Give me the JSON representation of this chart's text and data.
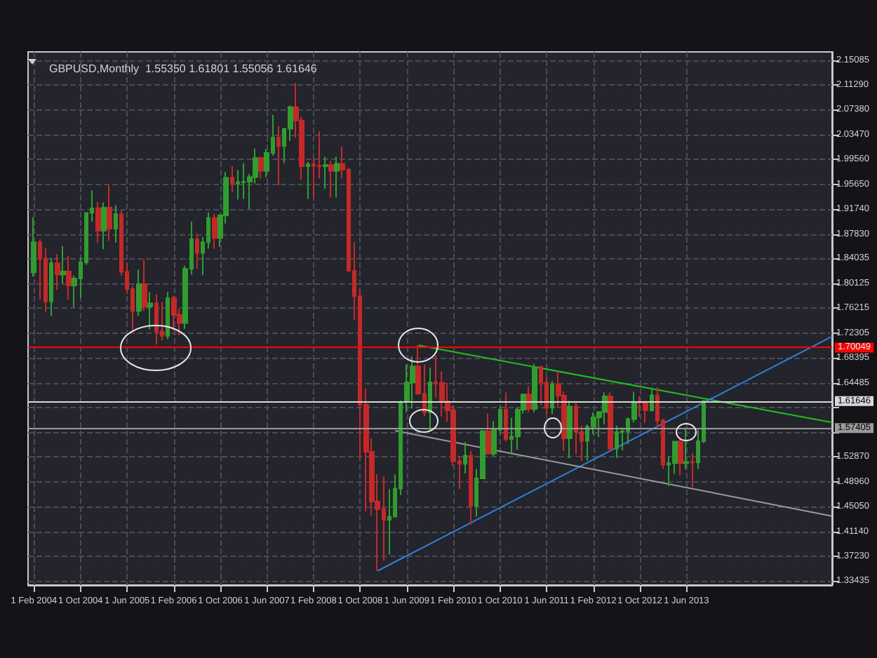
{
  "chart_data": {
    "type": "candlestick",
    "title": "GBPUSD,Monthly  1.55350 1.61801 1.55056 1.61646",
    "x": [
      "2004-02",
      "2004-03",
      "2004-04",
      "2004-05",
      "2004-06",
      "2004-07",
      "2004-08",
      "2004-09",
      "2004-10",
      "2004-11",
      "2004-12",
      "2005-01",
      "2005-02",
      "2005-03",
      "2005-04",
      "2005-05",
      "2005-06",
      "2005-07",
      "2005-08",
      "2005-09",
      "2005-10",
      "2005-11",
      "2005-12",
      "2006-01",
      "2006-02",
      "2006-03",
      "2006-04",
      "2006-05",
      "2006-06",
      "2006-07",
      "2006-08",
      "2006-09",
      "2006-10",
      "2006-11",
      "2006-12",
      "2007-01",
      "2007-02",
      "2007-03",
      "2007-04",
      "2007-05",
      "2007-06",
      "2007-07",
      "2007-08",
      "2007-09",
      "2007-10",
      "2007-11",
      "2007-12",
      "2008-01",
      "2008-02",
      "2008-03",
      "2008-04",
      "2008-05",
      "2008-06",
      "2008-07",
      "2008-08",
      "2008-09",
      "2008-10",
      "2008-11",
      "2008-12",
      "2009-01",
      "2009-02",
      "2009-03",
      "2009-04",
      "2009-05",
      "2009-06",
      "2009-07",
      "2009-08",
      "2009-09",
      "2009-10",
      "2009-11",
      "2009-12",
      "2010-01",
      "2010-02",
      "2010-03",
      "2010-04",
      "2010-05",
      "2010-06",
      "2010-07",
      "2010-08",
      "2010-09",
      "2010-10",
      "2010-11",
      "2010-12",
      "2011-01",
      "2011-02",
      "2011-03",
      "2011-04",
      "2011-05",
      "2011-06",
      "2011-07",
      "2011-08",
      "2011-09",
      "2011-10",
      "2011-11",
      "2011-12",
      "2012-01",
      "2012-02",
      "2012-03",
      "2012-04",
      "2012-05",
      "2012-06",
      "2012-07",
      "2012-08",
      "2012-09",
      "2012-10",
      "2012-11",
      "2012-12",
      "2013-01",
      "2013-02",
      "2013-03",
      "2013-04",
      "2013-05",
      "2013-06",
      "2013-07",
      "2013-08",
      "2013-09"
    ],
    "ohlc": [
      [
        1.8185,
        1.905,
        1.812,
        1.866
      ],
      [
        1.866,
        1.87,
        1.776,
        1.84
      ],
      [
        1.84,
        1.856,
        1.757,
        1.773
      ],
      [
        1.773,
        1.841,
        1.75,
        1.833
      ],
      [
        1.833,
        1.847,
        1.791,
        1.815
      ],
      [
        1.815,
        1.86,
        1.8,
        1.82
      ],
      [
        1.82,
        1.844,
        1.776,
        1.798
      ],
      [
        1.798,
        1.814,
        1.764,
        1.809
      ],
      [
        1.809,
        1.842,
        1.778,
        1.8345
      ],
      [
        1.8345,
        1.913,
        1.83,
        1.912
      ],
      [
        1.912,
        1.947,
        1.898,
        1.919
      ],
      [
        1.919,
        1.929,
        1.865,
        1.884
      ],
      [
        1.884,
        1.928,
        1.855,
        1.92
      ],
      [
        1.92,
        1.955,
        1.868,
        1.887
      ],
      [
        1.887,
        1.924,
        1.865,
        1.91
      ],
      [
        1.91,
        1.916,
        1.813,
        1.8195
      ],
      [
        1.8195,
        1.834,
        1.785,
        1.7925
      ],
      [
        1.7925,
        1.797,
        1.727,
        1.758
      ],
      [
        1.758,
        1.823,
        1.75,
        1.8
      ],
      [
        1.8,
        1.839,
        1.758,
        1.765
      ],
      [
        1.765,
        1.788,
        1.729,
        1.77
      ],
      [
        1.77,
        1.784,
        1.705,
        1.726
      ],
      [
        1.726,
        1.772,
        1.712,
        1.719
      ],
      [
        1.719,
        1.788,
        1.714,
        1.778
      ],
      [
        1.778,
        1.782,
        1.727,
        1.752
      ],
      [
        1.752,
        1.762,
        1.72,
        1.739
      ],
      [
        1.739,
        1.829,
        1.73,
        1.824
      ],
      [
        1.824,
        1.898,
        1.815,
        1.8705
      ],
      [
        1.8705,
        1.88,
        1.825,
        1.849
      ],
      [
        1.849,
        1.874,
        1.814,
        1.866
      ],
      [
        1.866,
        1.913,
        1.856,
        1.904
      ],
      [
        1.904,
        1.91,
        1.856,
        1.8725
      ],
      [
        1.8725,
        1.91,
        1.859,
        1.908
      ],
      [
        1.908,
        1.976,
        1.895,
        1.967
      ],
      [
        1.967,
        1.985,
        1.945,
        1.958
      ],
      [
        1.958,
        1.979,
        1.933,
        1.96
      ],
      [
        1.96,
        1.99,
        1.934,
        1.961
      ],
      [
        1.961,
        1.973,
        1.918,
        1.968
      ],
      [
        1.968,
        2.013,
        1.958,
        1.998
      ],
      [
        1.998,
        2.0,
        1.966,
        1.978
      ],
      [
        1.978,
        2.012,
        1.968,
        2.006
      ],
      [
        2.006,
        2.066,
        2.002,
        2.03
      ],
      [
        2.03,
        2.048,
        1.955,
        2.017
      ],
      [
        2.017,
        2.045,
        1.99,
        2.044
      ],
      [
        2.044,
        2.081,
        2.025,
        2.078
      ],
      [
        2.078,
        2.116,
        2.03,
        2.057
      ],
      [
        2.057,
        2.063,
        1.964,
        1.985
      ],
      [
        1.985,
        1.992,
        1.934,
        1.988
      ],
      [
        1.988,
        1.998,
        1.936,
        1.986
      ],
      [
        1.986,
        2.04,
        1.966,
        1.985
      ],
      [
        1.985,
        2.0,
        1.95,
        1.987
      ],
      [
        1.987,
        1.993,
        1.936,
        1.978
      ],
      [
        1.978,
        2.0,
        1.936,
        1.989
      ],
      [
        1.989,
        2.016,
        1.966,
        1.98
      ],
      [
        1.98,
        1.982,
        1.821,
        1.821
      ],
      [
        1.821,
        1.866,
        1.744,
        1.781
      ],
      [
        1.781,
        1.793,
        1.525,
        1.611
      ],
      [
        1.611,
        1.636,
        1.443,
        1.537
      ],
      [
        1.537,
        1.558,
        1.437,
        1.459
      ],
      [
        1.459,
        1.501,
        1.35,
        1.447
      ],
      [
        1.447,
        1.498,
        1.366,
        1.43
      ],
      [
        1.43,
        1.478,
        1.376,
        1.435
      ],
      [
        1.435,
        1.501,
        1.434,
        1.479
      ],
      [
        1.479,
        1.617,
        1.469,
        1.615
      ],
      [
        1.615,
        1.674,
        1.599,
        1.6455
      ],
      [
        1.6455,
        1.686,
        1.605,
        1.671
      ],
      [
        1.671,
        1.704,
        1.626,
        1.628
      ],
      [
        1.628,
        1.674,
        1.593,
        1.599
      ],
      [
        1.599,
        1.669,
        1.57,
        1.646
      ],
      [
        1.646,
        1.688,
        1.622,
        1.645
      ],
      [
        1.645,
        1.663,
        1.592,
        1.616
      ],
      [
        1.616,
        1.645,
        1.584,
        1.602
      ],
      [
        1.602,
        1.61,
        1.515,
        1.522
      ],
      [
        1.522,
        1.53,
        1.478,
        1.518
      ],
      [
        1.518,
        1.552,
        1.503,
        1.531
      ],
      [
        1.531,
        1.538,
        1.423,
        1.452
      ],
      [
        1.452,
        1.51,
        1.435,
        1.495
      ],
      [
        1.495,
        1.571,
        1.495,
        1.569
      ],
      [
        1.569,
        1.597,
        1.533,
        1.534
      ],
      [
        1.534,
        1.585,
        1.53,
        1.572
      ],
      [
        1.572,
        1.61,
        1.565,
        1.603
      ],
      [
        1.603,
        1.63,
        1.553,
        1.557
      ],
      [
        1.557,
        1.59,
        1.535,
        1.561
      ],
      [
        1.561,
        1.606,
        1.54,
        1.603
      ],
      [
        1.603,
        1.628,
        1.597,
        1.627
      ],
      [
        1.627,
        1.64,
        1.599,
        1.604
      ],
      [
        1.604,
        1.675,
        1.599,
        1.67
      ],
      [
        1.67,
        1.672,
        1.61,
        1.6455
      ],
      [
        1.6455,
        1.655,
        1.595,
        1.606
      ],
      [
        1.606,
        1.648,
        1.596,
        1.643
      ],
      [
        1.643,
        1.662,
        1.606,
        1.625
      ],
      [
        1.625,
        1.631,
        1.538,
        1.558
      ],
      [
        1.558,
        1.617,
        1.527,
        1.608
      ],
      [
        1.608,
        1.616,
        1.533,
        1.568
      ],
      [
        1.568,
        1.578,
        1.523,
        1.554
      ],
      [
        1.554,
        1.58,
        1.523,
        1.576
      ],
      [
        1.576,
        1.599,
        1.564,
        1.591
      ],
      [
        1.591,
        1.6,
        1.56,
        1.5995
      ],
      [
        1.5995,
        1.63,
        1.58,
        1.624
      ],
      [
        1.624,
        1.63,
        1.538,
        1.542
      ],
      [
        1.542,
        1.578,
        1.527,
        1.568
      ],
      [
        1.568,
        1.575,
        1.539,
        1.569
      ],
      [
        1.569,
        1.591,
        1.549,
        1.588
      ],
      [
        1.588,
        1.631,
        1.583,
        1.615
      ],
      [
        1.615,
        1.624,
        1.592,
        1.614
      ],
      [
        1.614,
        1.617,
        1.583,
        1.602
      ],
      [
        1.602,
        1.638,
        1.6,
        1.6255
      ],
      [
        1.6255,
        1.638,
        1.576,
        1.586
      ],
      [
        1.586,
        1.589,
        1.51,
        1.5165
      ],
      [
        1.5165,
        1.53,
        1.483,
        1.519
      ],
      [
        1.519,
        1.553,
        1.502,
        1.553
      ],
      [
        1.553,
        1.56,
        1.5,
        1.519
      ],
      [
        1.519,
        1.575,
        1.51,
        1.521
      ],
      [
        1.521,
        1.535,
        1.481,
        1.52
      ],
      [
        1.52,
        1.572,
        1.51,
        1.5535
      ],
      [
        1.5535,
        1.61801,
        1.55056,
        1.61646
      ]
    ],
    "colors": [
      "#2e9e2e",
      "#c62828",
      "#c62828",
      "#2e9e2e",
      "#c62828",
      "#2e9e2e",
      "#c62828",
      "#2e9e2e",
      "#2e9e2e",
      "#2e9e2e",
      "#2e9e2e",
      "#c62828",
      "#2e9e2e",
      "#c62828",
      "#2e9e2e",
      "#c62828",
      "#c62828",
      "#c62828",
      "#2e9e2e",
      "#c62828",
      "#2e9e2e",
      "#c62828",
      "#c62828",
      "#2e9e2e",
      "#c62828",
      "#c62828",
      "#2e9e2e",
      "#2e9e2e",
      "#c62828",
      "#2e9e2e",
      "#2e9e2e",
      "#c62828",
      "#2e9e2e",
      "#2e9e2e",
      "#c62828",
      "#2e9e2e",
      "#2e9e2e",
      "#2e9e2e",
      "#2e9e2e",
      "#c62828",
      "#2e9e2e",
      "#2e9e2e",
      "#c62828",
      "#2e9e2e",
      "#2e9e2e",
      "#c62828",
      "#c62828",
      "#2e9e2e",
      "#c62828",
      "#c62828",
      "#2e9e2e",
      "#c62828",
      "#2e9e2e",
      "#c62828",
      "#c62828",
      "#c62828",
      "#c62828",
      "#c62828",
      "#c62828",
      "#c62828",
      "#c62828",
      "#2e9e2e",
      "#2e9e2e",
      "#2e9e2e",
      "#2e9e2e",
      "#2e9e2e",
      "#c62828",
      "#c62828",
      "#2e9e2e",
      "#c62828",
      "#c62828",
      "#c62828",
      "#c62828",
      "#c62828",
      "#2e9e2e",
      "#c62828",
      "#2e9e2e",
      "#2e9e2e",
      "#c62828",
      "#2e9e2e",
      "#2e9e2e",
      "#c62828",
      "#2e9e2e",
      "#2e9e2e",
      "#2e9e2e",
      "#c62828",
      "#2e9e2e",
      "#c62828",
      "#c62828",
      "#2e9e2e",
      "#c62828",
      "#c62828",
      "#2e9e2e",
      "#c62828",
      "#c62828",
      "#2e9e2e",
      "#2e9e2e",
      "#2e9e2e",
      "#2e9e2e",
      "#c62828",
      "#2e9e2e",
      "#2e9e2e",
      "#2e9e2e",
      "#2e9e2e",
      "#c62828",
      "#c62828",
      "#2e9e2e",
      "#c62828",
      "#c62828",
      "#2e9e2e",
      "#2e9e2e",
      "#c62828",
      "#2e9e2e",
      "#c62828",
      "#2e9e2e",
      "#2e9e2e"
    ],
    "series": [
      {
        "type": "line",
        "color": "#20c020",
        "x": [
          "2009-08",
          "2015-07"
        ],
        "values": [
          1.704,
          1.583
        ]
      },
      {
        "type": "line",
        "color": "#2f7fd8",
        "x": [
          "2009-01",
          "2015-07"
        ],
        "values": [
          1.35,
          1.718
        ]
      },
      {
        "type": "line",
        "color": "#9a9a9a",
        "x": [
          "2009-04",
          "2015-07"
        ],
        "values": [
          1.57,
          1.436
        ]
      }
    ],
    "xlim": [
      "2004-01",
      "2015-07"
    ],
    "xticks": [
      {
        "value": "2004-02",
        "label": "1 Feb 2004"
      },
      {
        "value": "2004-10",
        "label": "1 Oct 2004"
      },
      {
        "value": "2005-06",
        "label": "1 Jun 2005"
      },
      {
        "value": "2006-02",
        "label": "1 Feb 2006"
      },
      {
        "value": "2006-10",
        "label": "1 Oct 2006"
      },
      {
        "value": "2007-06",
        "label": "1 Jun 2007"
      },
      {
        "value": "2008-02",
        "label": "1 Feb 2008"
      },
      {
        "value": "2008-10",
        "label": "1 Oct 2008"
      },
      {
        "value": "2009-06",
        "label": "1 Jun 2009"
      },
      {
        "value": "2010-02",
        "label": "1 Feb 2010"
      },
      {
        "value": "2010-10",
        "label": "1 Oct 2010"
      },
      {
        "value": "2011-06",
        "label": "1 Jun 2011"
      },
      {
        "value": "2012-02",
        "label": "1 Feb 2012"
      },
      {
        "value": "2012-10",
        "label": "1 Oct 2012"
      },
      {
        "value": "2013-06",
        "label": "1 Jun 2013"
      }
    ],
    "ylim": [
      1.3277,
      2.1646
    ],
    "yticks": [
      {
        "value": 1.33435,
        "label": "1.33435"
      },
      {
        "value": 1.3723,
        "label": "1.37230"
      },
      {
        "value": 1.4114,
        "label": "1.41140"
      },
      {
        "value": 1.4505,
        "label": "1.45050"
      },
      {
        "value": 1.4896,
        "label": "1.48960"
      },
      {
        "value": 1.5287,
        "label": "1.52870"
      },
      {
        "value": 1.56665,
        "label": null
      },
      {
        "value": 1.60575,
        "label": null
      },
      {
        "value": 1.64485,
        "label": "1.64485"
      },
      {
        "value": 1.68395,
        "label": "1.68395"
      },
      {
        "value": 1.72305,
        "label": "1.72305"
      },
      {
        "value": 1.76215,
        "label": "1.76215"
      },
      {
        "value": 1.80125,
        "label": "1.80125"
      },
      {
        "value": 1.84035,
        "label": "1.84035"
      },
      {
        "value": 1.8783,
        "label": "1.87830"
      },
      {
        "value": 1.9174,
        "label": "1.91740"
      },
      {
        "value": 1.9565,
        "label": "1.95650"
      },
      {
        "value": 1.9956,
        "label": "1.99560"
      },
      {
        "value": 2.0347,
        "label": "2.03470"
      },
      {
        "value": 2.0738,
        "label": "2.07380"
      },
      {
        "value": 2.1129,
        "label": "2.11290"
      },
      {
        "value": 2.15085,
        "label": "2.15085"
      }
    ],
    "ref_lines": [
      {
        "axis": "y",
        "value": 1.70049,
        "label": "1.70049",
        "color": "#ff0000"
      },
      {
        "axis": "y",
        "value": 1.61646,
        "label": "1.61646",
        "color": "#d8d8d8"
      },
      {
        "axis": "y",
        "value": 1.57405,
        "label": "1.57405",
        "color": "#9a9a9a"
      }
    ],
    "grid": true
  }
}
